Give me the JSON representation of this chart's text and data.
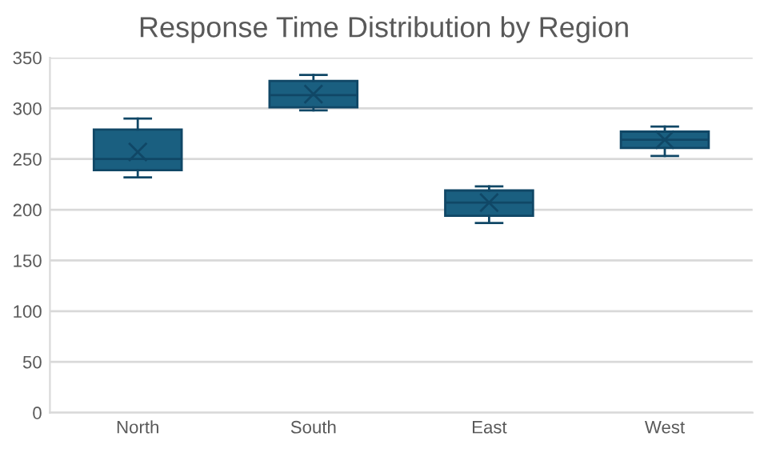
{
  "chart_data": {
    "type": "box",
    "title": "Response Time Distribution by Region",
    "categories": [
      "North",
      "South",
      "East",
      "West"
    ],
    "color": "#1a5f80",
    "boxes": [
      {
        "low": 232,
        "q1": 239,
        "median": 250,
        "q3": 279,
        "high": 290,
        "mean": 257
      },
      {
        "low": 298,
        "q1": 301,
        "median": 313,
        "q3": 327,
        "high": 333,
        "mean": 314
      },
      {
        "low": 187,
        "q1": 194,
        "median": 207,
        "q3": 219,
        "high": 223,
        "mean": 207
      },
      {
        "low": 253,
        "q1": 261,
        "median": 269,
        "q3": 277,
        "high": 282,
        "mean": 269
      }
    ],
    "ylim": [
      0,
      350
    ],
    "yticks": [
      0,
      50,
      100,
      150,
      200,
      250,
      300,
      350
    ],
    "grid": "y",
    "legend": false
  }
}
